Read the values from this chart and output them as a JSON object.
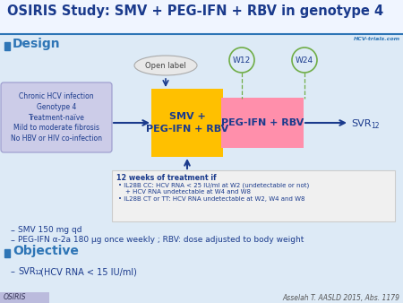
{
  "title": "OSIRIS Study: SMV + PEG-IFN + RBV in genotype 4",
  "title_color": "#1a3a8c",
  "bg_color": "#ddeaf6",
  "design_label": "Design",
  "section_color": "#2e75b6",
  "open_label_text": "Open label",
  "patient_box_text": "Chronic HCV infection\nGenotype 4\nTreatment-naïve\nMild to moderate fibrosis\nNo HBV or HIV co-infection",
  "patient_box_facecolor": "#cccce8",
  "patient_box_edgecolor": "#9999cc",
  "smv_box_text": "SMV +\nPEG-IFN + RBV",
  "smv_box_color": "#ffc000",
  "peg_box_text": "PEG-IFN + RBV",
  "peg_box_color": "#ff8fab",
  "w12_text": "W12",
  "w24_text": "W24",
  "w_circle_color": "#70ad47",
  "criteria_title": "12 weeks of treatment if",
  "criteria_line1": "IL28B CC: HCV RNA < 25 IU/ml at W2 (undetectable or not)",
  "criteria_line1b": "+ HCV RNA undetectable at W4 and W8",
  "criteria_line2": "IL28B CT or TT: HCV RNA undetectable at W2, W4 and W8",
  "criteria_box_color": "#f0f0f0",
  "criteria_box_edge": "#cccccc",
  "bullet_smv": "SMV 150 mg qd",
  "bullet_peg": "PEG-IFN α-2a 180 μg once weekly ; RBV: dose adjusted to body weight",
  "objective_label": "Objective",
  "footer_left": "OSIRIS",
  "footer_right": "Asselah T. AASLD 2015, Abs. 1179",
  "arrow_color": "#1a3a8c",
  "text_color": "#1a3a8c",
  "header_line_color": "#2e75b6",
  "title_bg_color": "#ffffff",
  "hcv_logo_text": "HCV-trials.com"
}
